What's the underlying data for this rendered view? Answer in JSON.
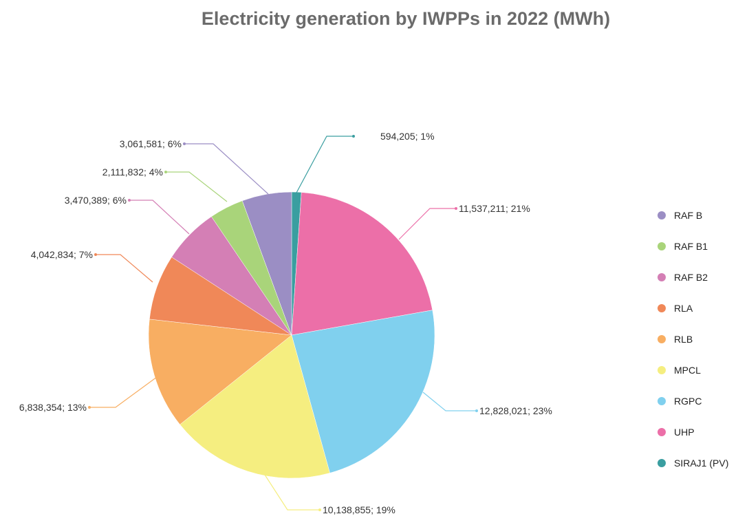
{
  "chart_data": {
    "type": "pie",
    "title": "Electricity generation by IWPPs in 2022 (MWh)",
    "legend_position": "right",
    "slices": [
      {
        "name": "SIRAJ1 (PV)",
        "value": 594205,
        "label": "594,205; 1%",
        "color": "#3a9ea0"
      },
      {
        "name": "UHP",
        "value": 11537211,
        "label": "11,537,211; 21%",
        "color": "#ec6fa8"
      },
      {
        "name": "RGPC",
        "value": 12828021,
        "label": "12,828,021; 23%",
        "color": "#80d0ee"
      },
      {
        "name": "MPCL",
        "value": 10138855,
        "label": "10,138,855; 19%",
        "color": "#f5ee80"
      },
      {
        "name": "RLB",
        "value": 6838354,
        "label": "6,838,354; 13%",
        "color": "#f8ae62"
      },
      {
        "name": "RLA",
        "value": 4042834,
        "label": "4,042,834; 7%",
        "color": "#f08858"
      },
      {
        "name": "RAF B2",
        "value": 3470389,
        "label": "3,470,389; 6%",
        "color": "#d47fb5"
      },
      {
        "name": "RAF B1",
        "value": 2111832,
        "label": "2,111,832; 4%",
        "color": "#a9d47a"
      },
      {
        "name": "RAF B",
        "value": 3061581,
        "label": "3,061,581; 6%",
        "color": "#9b8ec4"
      }
    ],
    "legend_order": [
      "RAF B",
      "RAF B1",
      "RAF B2",
      "RLA",
      "RLB",
      "MPCL",
      "RGPC",
      "UHP",
      "SIRAJ1 (PV)"
    ]
  }
}
